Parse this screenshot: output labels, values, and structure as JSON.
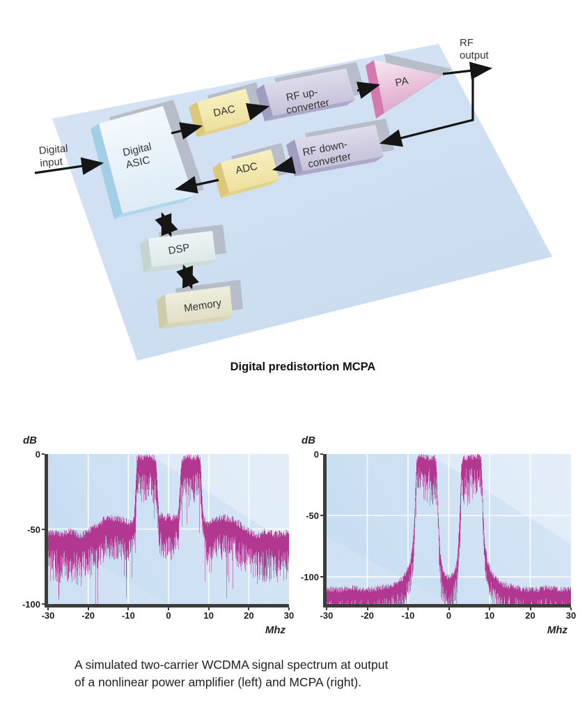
{
  "diagram": {
    "caption": "Digital predistortion MCPA",
    "input_label": {
      "line1": "Digital",
      "line2": "input"
    },
    "output_label": {
      "line1": "RF",
      "line2": "output"
    },
    "blocks": {
      "asic": {
        "line1": "Digital",
        "line2": "ASIC"
      },
      "dac": {
        "label": "DAC"
      },
      "adc": {
        "label": "ADC"
      },
      "rf_up": {
        "line1": "RF up-",
        "line2": "converter"
      },
      "rf_down": {
        "line1": "RF down-",
        "line2": "converter"
      },
      "pa": {
        "label": "PA"
      },
      "dsp": {
        "label": "DSP"
      },
      "memory": {
        "label": "Memory"
      }
    },
    "colors": {
      "plate": "#cfdff2",
      "shadow": "#b7bdc9",
      "asic_face": "#eef6fb",
      "asic_side": "#abd4e9",
      "converter_face": "#d6d3e6",
      "converter_side": "#a19dc0",
      "dac_adc_face": "#f6edb6",
      "dac_adc_side": "#dcc87d",
      "pa_face": "#efc9df",
      "pa_side": "#d679ae",
      "dsp_face": "#e9f1f2",
      "dsp_side": "#c3d4d1",
      "memory_face": "#ebead6",
      "memory_side": "#cdccab",
      "arrow": "#151515"
    }
  },
  "figure_caption": {
    "line1": "A simulated two-carrier WCDMA signal spectrum at output",
    "line2": "of a nonlinear power amplifier (left) and MCPA (right)."
  },
  "chart_data": [
    {
      "type": "area",
      "title": "Two-carrier WCDMA spectrum at nonlinear PA output (left)",
      "xlabel": "Mhz",
      "ylabel": "dB",
      "xlim": [
        -30,
        30
      ],
      "ylim": [
        -100,
        0
      ],
      "xticks": [
        -30,
        -20,
        -10,
        0,
        10,
        20,
        30
      ],
      "yticks": [
        0,
        -50,
        -100
      ],
      "grid": true,
      "color": "#b13791",
      "axis_color": "#3c3c3c",
      "bg_colors": [
        "#c6dcf2",
        "#d8e7f6"
      ],
      "carriers_mhz": [
        [
          -7.9,
          -3.0
        ],
        [
          3.0,
          7.9
        ]
      ],
      "envelope": [
        [
          -30,
          -55,
          22
        ],
        [
          -27,
          -56,
          22
        ],
        [
          -24,
          -54,
          24
        ],
        [
          -22,
          -57,
          24
        ],
        [
          -20,
          -54,
          22
        ],
        [
          -18,
          -50,
          20
        ],
        [
          -16,
          -46,
          18
        ],
        [
          -13,
          -45,
          18
        ],
        [
          -11,
          -47,
          16
        ],
        [
          -9.5,
          -49,
          14
        ],
        [
          -8.6,
          -44,
          12
        ],
        [
          -8.2,
          -25,
          14
        ],
        [
          -7.9,
          -6,
          18
        ],
        [
          -7.5,
          -4,
          20
        ],
        [
          -3.4,
          -5,
          20
        ],
        [
          -3.0,
          -12,
          18
        ],
        [
          -2.7,
          -30,
          16
        ],
        [
          -2.4,
          -44,
          16
        ],
        [
          -1.6,
          -43,
          18
        ],
        [
          -0.8,
          -45,
          18
        ],
        [
          0,
          -43,
          18
        ],
        [
          0.8,
          -46,
          18
        ],
        [
          1.6,
          -44,
          18
        ],
        [
          2.4,
          -43,
          16
        ],
        [
          2.7,
          -30,
          16
        ],
        [
          3.0,
          -12,
          18
        ],
        [
          3.4,
          -5,
          20
        ],
        [
          7.5,
          -4,
          20
        ],
        [
          7.9,
          -6,
          18
        ],
        [
          8.2,
          -25,
          14
        ],
        [
          8.6,
          -44,
          12
        ],
        [
          9.5,
          -49,
          14
        ],
        [
          11,
          -47,
          16
        ],
        [
          13,
          -45,
          18
        ],
        [
          16,
          -46,
          18
        ],
        [
          18,
          -50,
          20
        ],
        [
          20,
          -54,
          22
        ],
        [
          22,
          -57,
          24
        ],
        [
          24,
          -54,
          24
        ],
        [
          27,
          -56,
          22
        ],
        [
          30,
          -55,
          22
        ]
      ],
      "noise": {
        "up": 5,
        "down_base": 8,
        "spike_prob": 0.05,
        "spike_extra": 32,
        "seed": 7
      }
    },
    {
      "type": "area",
      "title": "Two-carrier WCDMA spectrum at MCPA output (right)",
      "xlabel": "Mhz",
      "ylabel": "dB",
      "xlim": [
        -30,
        30
      ],
      "ylim": [
        -122,
        0
      ],
      "xticks": [
        -30,
        -20,
        -10,
        0,
        10,
        20,
        30
      ],
      "yticks": [
        0,
        -50,
        -100
      ],
      "grid": true,
      "color": "#b13791",
      "axis_color": "#3c3c3c",
      "bg_colors": [
        "#c6dcf2",
        "#d8e7f6"
      ],
      "carriers_mhz": [
        [
          -7.9,
          -3.0
        ],
        [
          3.0,
          7.9
        ]
      ],
      "envelope": [
        [
          -30,
          -112,
          26
        ],
        [
          -27,
          -113,
          26
        ],
        [
          -24,
          -111,
          26
        ],
        [
          -21,
          -113,
          26
        ],
        [
          -18,
          -112,
          24
        ],
        [
          -15,
          -110,
          24
        ],
        [
          -13,
          -108,
          22
        ],
        [
          -11.5,
          -104,
          20
        ],
        [
          -10.5,
          -99,
          18
        ],
        [
          -9.5,
          -91,
          16
        ],
        [
          -8.8,
          -75,
          18
        ],
        [
          -8.4,
          -50,
          20
        ],
        [
          -8.1,
          -22,
          22
        ],
        [
          -7.9,
          -6,
          16
        ],
        [
          -7.5,
          -4,
          18
        ],
        [
          -5.5,
          -5,
          30
        ],
        [
          -4.2,
          -6,
          32
        ],
        [
          -3.4,
          -5,
          28
        ],
        [
          -3.0,
          -14,
          26
        ],
        [
          -2.8,
          -36,
          24
        ],
        [
          -2.5,
          -60,
          22
        ],
        [
          -2.2,
          -80,
          20
        ],
        [
          -1.8,
          -93,
          20
        ],
        [
          -1.2,
          -99,
          22
        ],
        [
          -0.6,
          -102,
          24
        ],
        [
          0,
          -103,
          24
        ],
        [
          0.6,
          -101,
          24
        ],
        [
          1.2,
          -100,
          22
        ],
        [
          1.8,
          -94,
          20
        ],
        [
          2.2,
          -81,
          20
        ],
        [
          2.5,
          -62,
          22
        ],
        [
          2.8,
          -38,
          24
        ],
        [
          3.0,
          -14,
          26
        ],
        [
          3.4,
          -5,
          28
        ],
        [
          4.2,
          -6,
          32
        ],
        [
          5.5,
          -5,
          30
        ],
        [
          7.5,
          -4,
          18
        ],
        [
          7.9,
          -6,
          16
        ],
        [
          8.1,
          -22,
          22
        ],
        [
          8.4,
          -50,
          20
        ],
        [
          8.8,
          -75,
          18
        ],
        [
          9.5,
          -91,
          16
        ],
        [
          10.5,
          -99,
          18
        ],
        [
          11.5,
          -104,
          20
        ],
        [
          13,
          -108,
          22
        ],
        [
          15,
          -110,
          24
        ],
        [
          18,
          -112,
          24
        ],
        [
          21,
          -113,
          26
        ],
        [
          24,
          -111,
          26
        ],
        [
          27,
          -113,
          26
        ],
        [
          30,
          -112,
          26
        ]
      ],
      "noise": {
        "up": 5,
        "down_base": 6,
        "spike_prob": 0.06,
        "spike_extra": 14,
        "seed": 13
      }
    }
  ]
}
